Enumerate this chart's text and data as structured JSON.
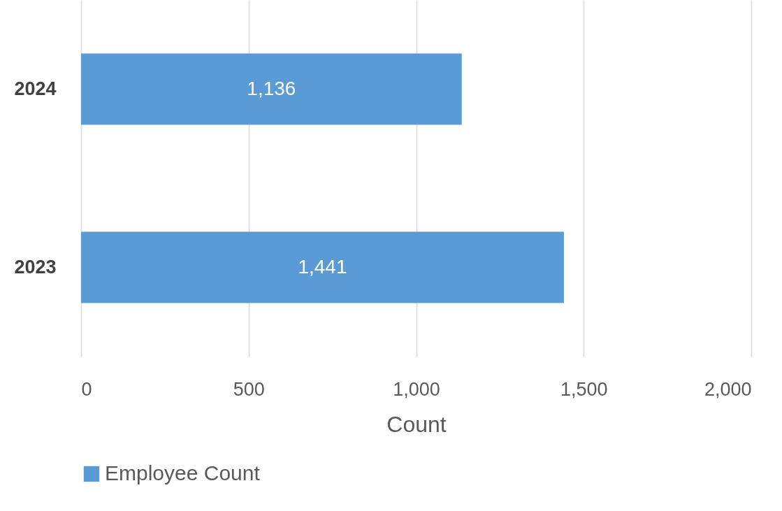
{
  "chart_data": {
    "type": "bar",
    "orientation": "horizontal",
    "categories": [
      "2024",
      "2023"
    ],
    "series": [
      {
        "name": "Employee Count",
        "color": "#5b9bd5",
        "values": [
          1136,
          1441
        ]
      }
    ],
    "value_labels": [
      "1,136",
      "1,441"
    ],
    "xlabel": "Count",
    "xlim": [
      0,
      2000
    ],
    "xticks": [
      0,
      500,
      {
        "value": 1000,
        "label": "1,000"
      },
      {
        "value": 1500,
        "label": "1,500"
      },
      {
        "value": 2000,
        "label": "2,000"
      }
    ],
    "grid": "x",
    "legend": "bottom"
  }
}
